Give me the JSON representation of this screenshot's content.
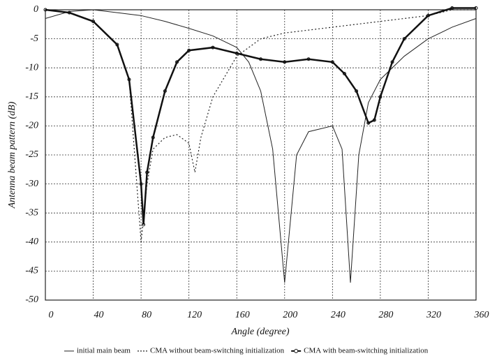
{
  "chart_data": {
    "type": "line",
    "xlabel": "Angle (degree)",
    "ylabel": "Antenna beam pattern (dB)",
    "xlim": [
      0,
      360
    ],
    "xticks": [
      0,
      40,
      80,
      120,
      160,
      200,
      240,
      280,
      320,
      360
    ],
    "ylim": [
      -50,
      0
    ],
    "yticks": [
      0,
      -5,
      -10,
      -15,
      -20,
      -25,
      -30,
      -35,
      -40,
      -45,
      -50
    ],
    "grid": true,
    "legend": "bottom",
    "series": [
      {
        "name": "initial main beam",
        "color": "#222",
        "line_style": "solid",
        "width": 1,
        "x": [
          0,
          20,
          40,
          60,
          80,
          100,
          120,
          140,
          160,
          170,
          180,
          190,
          200,
          210,
          220,
          240,
          248,
          255,
          262,
          270,
          280,
          300,
          320,
          340,
          360
        ],
        "values": [
          -1.5,
          -0.3,
          0,
          -0.5,
          -1,
          -2,
          -3.2,
          -4.5,
          -6.5,
          -9,
          -14,
          -24,
          -47,
          -25,
          -21,
          -20,
          -24,
          -47,
          -25,
          -16,
          -12,
          -8,
          -5,
          -3,
          -1.5
        ]
      },
      {
        "name": "CMA without beam-switching initialization",
        "color": "#222",
        "line_style": "dotted",
        "width": 1.2,
        "x": [
          0,
          20,
          40,
          60,
          70,
          80,
          85,
          90,
          100,
          110,
          120,
          125,
          130,
          140,
          160,
          180,
          200,
          220,
          240,
          260,
          280,
          300,
          320,
          340,
          360
        ],
        "values": [
          0,
          -0.5,
          -2,
          -6,
          -12,
          -40,
          -30,
          -24,
          -22,
          -21.5,
          -23,
          -28,
          -22,
          -15,
          -8,
          -5,
          -4,
          -3.5,
          -3,
          -2.5,
          -2,
          -1.5,
          -1,
          0,
          0
        ]
      },
      {
        "name": "CMA with beam-switching initialization",
        "color": "#111",
        "line_style": "solid",
        "width": 2.5,
        "marker": "o",
        "x": [
          0,
          20,
          40,
          60,
          70,
          80,
          82,
          85,
          90,
          100,
          110,
          120,
          140,
          160,
          180,
          200,
          220,
          240,
          250,
          260,
          270,
          275,
          280,
          290,
          300,
          320,
          340,
          360
        ],
        "values": [
          0,
          -0.5,
          -2,
          -6,
          -12,
          -30,
          -37,
          -28,
          -22,
          -14,
          -9,
          -7,
          -6.5,
          -7.5,
          -8.5,
          -9,
          -8.5,
          -9,
          -11,
          -14,
          -19.5,
          -19,
          -15,
          -9,
          -5,
          -1,
          0.3,
          0.3
        ]
      }
    ]
  }
}
